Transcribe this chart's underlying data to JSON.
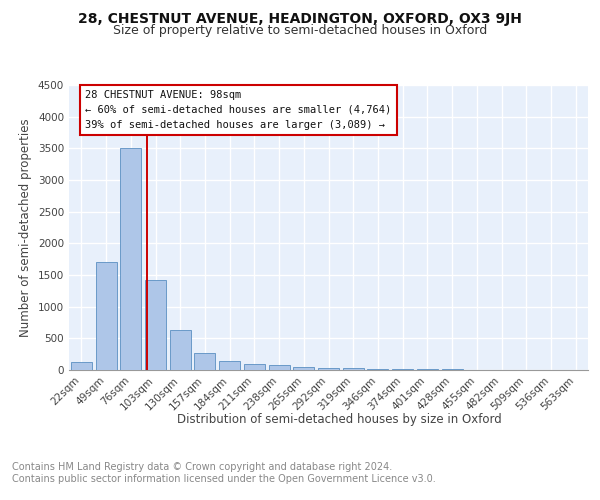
{
  "title_line1": "28, CHESTNUT AVENUE, HEADINGTON, OXFORD, OX3 9JH",
  "title_line2": "Size of property relative to semi-detached houses in Oxford",
  "xlabel": "Distribution of semi-detached houses by size in Oxford",
  "ylabel": "Number of semi-detached properties",
  "footnote": "Contains HM Land Registry data © Crown copyright and database right 2024.\nContains public sector information licensed under the Open Government Licence v3.0.",
  "bar_labels": [
    "22sqm",
    "49sqm",
    "76sqm",
    "103sqm",
    "130sqm",
    "157sqm",
    "184sqm",
    "211sqm",
    "238sqm",
    "265sqm",
    "292sqm",
    "319sqm",
    "346sqm",
    "374sqm",
    "401sqm",
    "428sqm",
    "455sqm",
    "482sqm",
    "509sqm",
    "536sqm",
    "563sqm"
  ],
  "bar_values": [
    130,
    1700,
    3500,
    1420,
    630,
    265,
    145,
    95,
    75,
    50,
    35,
    25,
    20,
    15,
    10,
    8,
    6,
    5,
    4,
    3,
    2
  ],
  "bar_color": "#aec6e8",
  "bar_edge_color": "#5a8fc2",
  "ylim": [
    0,
    4500
  ],
  "yticks": [
    0,
    500,
    1000,
    1500,
    2000,
    2500,
    3000,
    3500,
    4000,
    4500
  ],
  "vline_bin": 2.67,
  "property_label": "28 CHESTNUT AVENUE: 98sqm",
  "annotation_line1": "← 60% of semi-detached houses are smaller (4,764)",
  "annotation_line2": "39% of semi-detached houses are larger (3,089) →",
  "annotation_box_color": "#ffffff",
  "annotation_box_edge": "#cc0000",
  "vline_color": "#cc0000",
  "plot_bg_color": "#e8f0fb",
  "grid_color": "#ffffff",
  "title_fontsize": 10,
  "subtitle_fontsize": 9,
  "axis_label_fontsize": 8.5,
  "tick_fontsize": 7.5,
  "footnote_fontsize": 7,
  "annotation_fontsize": 7.5
}
